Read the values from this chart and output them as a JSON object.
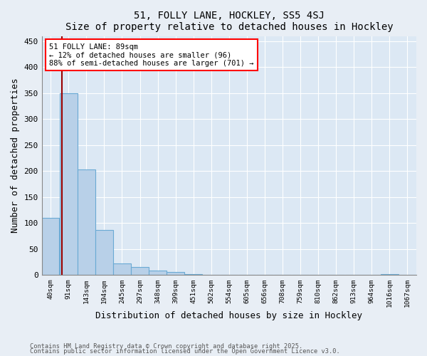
{
  "title": "51, FOLLY LANE, HOCKLEY, SS5 4SJ",
  "subtitle": "Size of property relative to detached houses in Hockley",
  "xlabel": "Distribution of detached houses by size in Hockley",
  "ylabel": "Number of detached properties",
  "bar_color": "#b8d0e8",
  "bar_edge_color": "#6aaad4",
  "categories": [
    "40sqm",
    "91sqm",
    "143sqm",
    "194sqm",
    "245sqm",
    "297sqm",
    "348sqm",
    "399sqm",
    "451sqm",
    "502sqm",
    "554sqm",
    "605sqm",
    "656sqm",
    "708sqm",
    "759sqm",
    "810sqm",
    "862sqm",
    "913sqm",
    "964sqm",
    "1016sqm",
    "1067sqm"
  ],
  "values": [
    110,
    350,
    203,
    87,
    23,
    15,
    9,
    6,
    2,
    0,
    0,
    0,
    0,
    0,
    0,
    0,
    0,
    0,
    0,
    2,
    0
  ],
  "ylim": [
    0,
    460
  ],
  "yticks": [
    0,
    50,
    100,
    150,
    200,
    250,
    300,
    350,
    400,
    450
  ],
  "vline_x": 0.62,
  "vline_color": "#990000",
  "annotation_text": "51 FOLLY LANE: 89sqm\n← 12% of detached houses are smaller (96)\n88% of semi-detached houses are larger (701) →",
  "footer1": "Contains HM Land Registry data © Crown copyright and database right 2025.",
  "footer2": "Contains public sector information licensed under the Open Government Licence v3.0.",
  "bg_color": "#e8eef5",
  "plot_bg_color": "#dce8f4"
}
